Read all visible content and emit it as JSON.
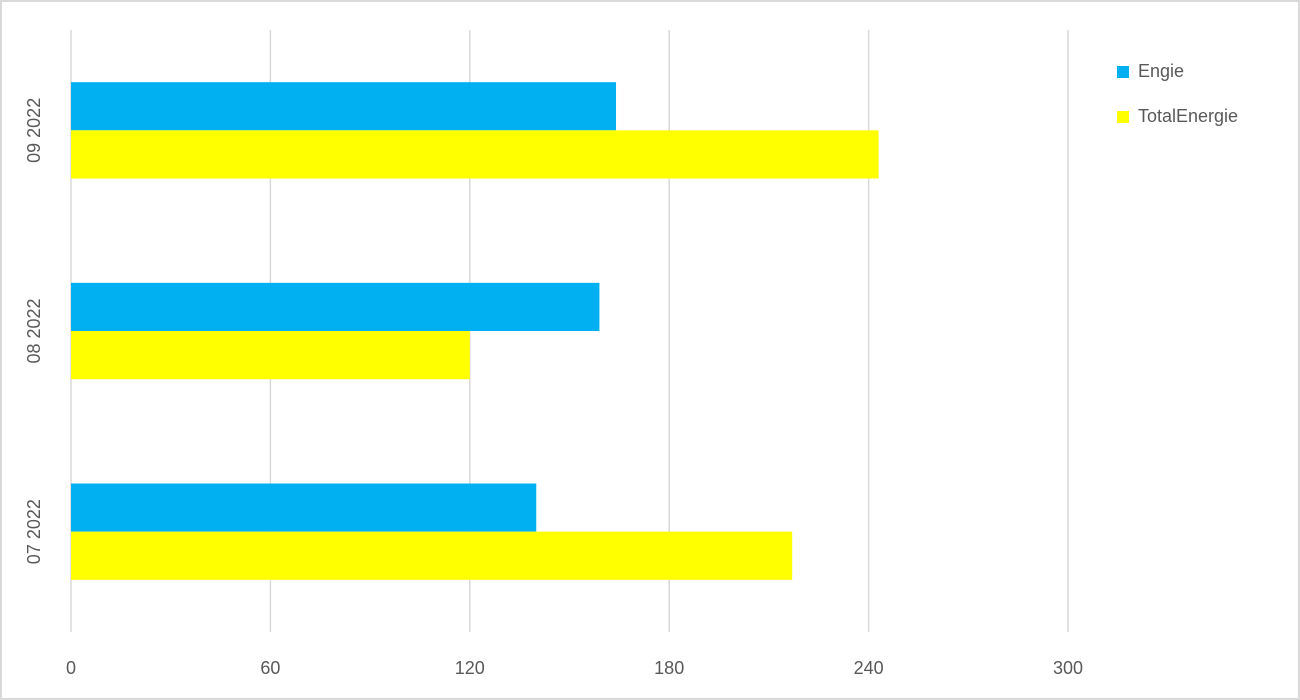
{
  "chart_data": {
    "type": "hbar",
    "categories": [
      "07 2022",
      "08 2022",
      "09 2022"
    ],
    "series": [
      {
        "name": "Engie",
        "color": "#00b0f0",
        "values": [
          140,
          159,
          164
        ]
      },
      {
        "name": "TotalEnergie",
        "color": "#ffff00",
        "values": [
          217,
          120,
          243
        ]
      }
    ],
    "xlim": [
      0,
      300
    ],
    "xticks": [
      0,
      60,
      120,
      180,
      240,
      300
    ],
    "grid": true,
    "legend": "top-right"
  }
}
